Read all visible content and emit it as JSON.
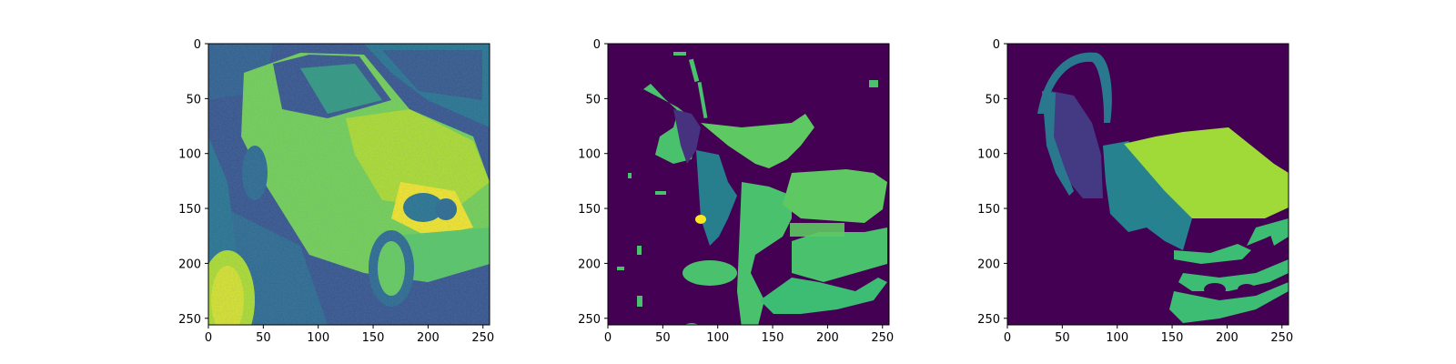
{
  "chart_data": [
    {
      "type": "heatmap",
      "panel": "grayscale car image (viridis colormap)",
      "colormap": "viridis",
      "image_shape": [
        256,
        256
      ],
      "xlim": [
        0,
        256
      ],
      "ylim": [
        256,
        0
      ],
      "y_inverted": true,
      "xticks": [
        0,
        50,
        100,
        150,
        200,
        250
      ],
      "yticks": [
        0,
        50,
        100,
        150,
        200,
        250
      ],
      "xtick_labels": [
        "0",
        "50",
        "100",
        "150",
        "200",
        "250"
      ],
      "ytick_labels": [
        "0",
        "50",
        "100",
        "150",
        "200",
        "250"
      ],
      "title": "",
      "xlabel": "",
      "ylabel": "",
      "colors": {
        "background": "#3b528b",
        "body": "#b5de2b",
        "highlight": "#fde725",
        "dark": "#31688e",
        "ground": "#21918c"
      }
    },
    {
      "type": "heatmap",
      "panel": "predicted segmentation mask",
      "colormap": "viridis",
      "image_shape": [
        256,
        256
      ],
      "xlim": [
        0,
        256
      ],
      "ylim": [
        256,
        0
      ],
      "y_inverted": true,
      "xticks": [
        0,
        50,
        100,
        150,
        200,
        250
      ],
      "yticks": [
        0,
        50,
        100,
        150,
        200,
        250
      ],
      "xtick_labels": [
        "0",
        "50",
        "100",
        "150",
        "200",
        "250"
      ],
      "ytick_labels": [
        "0",
        "50",
        "100",
        "150",
        "200",
        "250"
      ],
      "title": "",
      "xlabel": "",
      "ylabel": "",
      "colors": {
        "background": "#440154",
        "class_1": "#46327e",
        "class_2": "#277f8e",
        "class_3": "#4ac16d",
        "class_4": "#5ec962",
        "class_5": "#fde725"
      }
    },
    {
      "type": "heatmap",
      "panel": "ground-truth segmentation mask",
      "colormap": "viridis",
      "image_shape": [
        256,
        256
      ],
      "xlim": [
        0,
        256
      ],
      "ylim": [
        256,
        0
      ],
      "y_inverted": true,
      "xticks": [
        0,
        50,
        100,
        150,
        200,
        250
      ],
      "yticks": [
        0,
        50,
        100,
        150,
        200,
        250
      ],
      "xtick_labels": [
        "0",
        "50",
        "100",
        "150",
        "200",
        "250"
      ],
      "ytick_labels": [
        "0",
        "50",
        "100",
        "150",
        "200",
        "250"
      ],
      "title": "",
      "xlabel": "",
      "ylabel": "",
      "colors": {
        "background": "#440154",
        "door": "#443983",
        "side": "#26828e",
        "hood": "#a0da39",
        "bumper": "#3dbc74",
        "mirror": "#2a788e"
      }
    }
  ]
}
